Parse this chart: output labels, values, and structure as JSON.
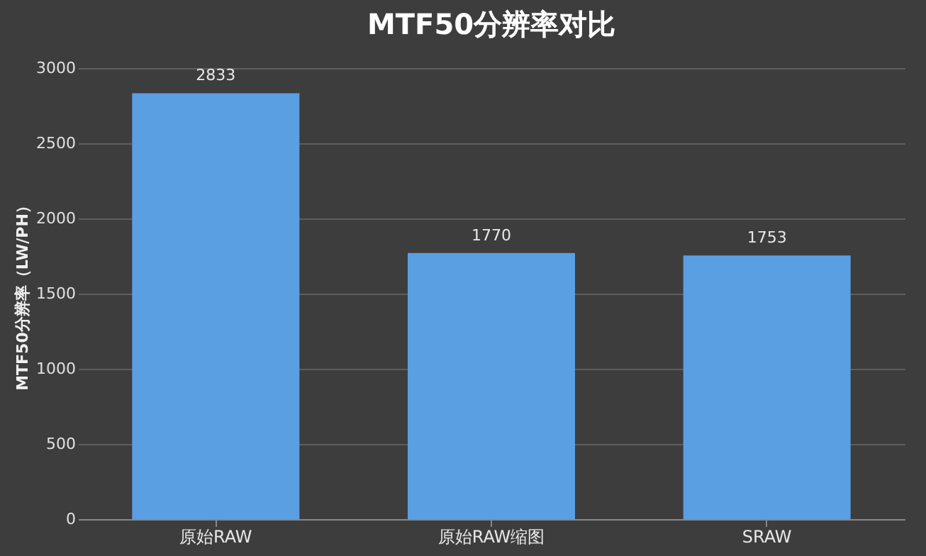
{
  "chart_data": {
    "type": "bar",
    "title": "MTF50分辨率对比",
    "ylabel": "MTF50分辨率（LW/PH）",
    "categories": [
      "原始RAW",
      "原始RAW缩图",
      "SRAW"
    ],
    "values": [
      2833,
      1770,
      1753
    ],
    "color": "#5b9fe3",
    "ylim": [
      0,
      3000
    ],
    "yticks": [
      0,
      500,
      1000,
      1500,
      2000,
      2500,
      3000
    ],
    "grid": "y",
    "data_labels": true
  }
}
